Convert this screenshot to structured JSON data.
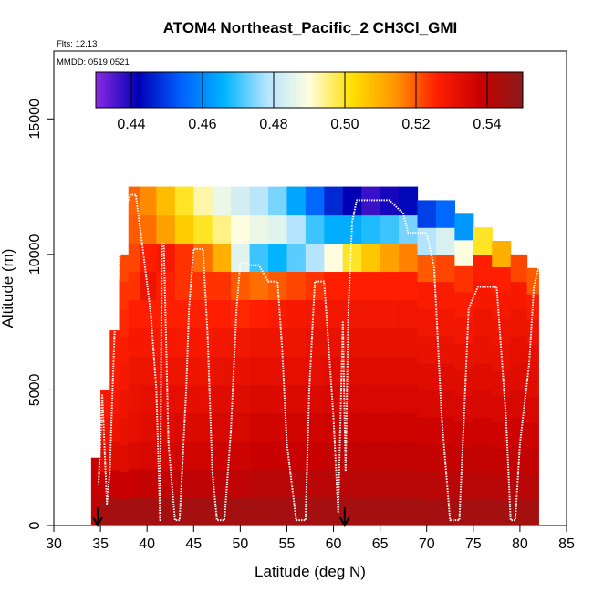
{
  "chart_data": {
    "type": "heatmap",
    "title": "ATOM4 Northeast_Pacific_2 CH3Cl_GMI",
    "flights_label": "Flts: 12,13",
    "date_label": "MMDD: 0519,0521",
    "xlabel": "Latitude (deg N)",
    "ylabel": "Altitude (m)",
    "xlim": [
      30,
      85
    ],
    "ylim": [
      0,
      17500
    ],
    "x_ticks": [
      "30",
      "35",
      "40",
      "45",
      "50",
      "55",
      "60",
      "65",
      "70",
      "75",
      "80",
      "85"
    ],
    "y_ticks": [
      "0",
      "5000",
      "10000",
      "15000"
    ],
    "colorbar": {
      "range": [
        0.43,
        0.55
      ],
      "ticks": [
        "0.44",
        "0.46",
        "0.48",
        "0.50",
        "0.52",
        "0.54"
      ],
      "stops": [
        "#8a2be2",
        "#0000b4",
        "#0060ff",
        "#00b4ff",
        "#b4e4ff",
        "#fffde0",
        "#ffe000",
        "#ff9600",
        "#ff1e00",
        "#c80000",
        "#8b1a1a"
      ]
    },
    "field_columns": [
      {
        "lat": 34.5,
        "top": 2500,
        "values": [
          0.54,
          0.538
        ]
      },
      {
        "lat": 35.5,
        "top": 5000,
        "values": [
          0.545,
          0.538,
          0.532,
          0.53,
          0.528
        ]
      },
      {
        "lat": 36.5,
        "top": 7200,
        "values": [
          0.545,
          0.538,
          0.533,
          0.53,
          0.528,
          0.527,
          0.526
        ]
      },
      {
        "lat": 37.5,
        "top": 10000,
        "values": [
          0.545,
          0.538,
          0.533,
          0.531,
          0.53,
          0.528,
          0.527,
          0.525,
          0.524,
          0.522
        ]
      },
      {
        "lat": 38.5,
        "top": 12500,
        "values": [
          0.545,
          0.538,
          0.534,
          0.532,
          0.531,
          0.53,
          0.528,
          0.526,
          0.524,
          0.522,
          0.52,
          0.519
        ]
      },
      {
        "lat": 40.0,
        "top": 12500,
        "values": [
          0.545,
          0.539,
          0.535,
          0.533,
          0.532,
          0.53,
          0.528,
          0.526,
          0.53,
          0.526,
          0.518,
          0.515
        ]
      },
      {
        "lat": 42.0,
        "top": 12500,
        "values": [
          0.545,
          0.539,
          0.535,
          0.533,
          0.532,
          0.53,
          0.528,
          0.526,
          0.526,
          0.528,
          0.512,
          0.508
        ]
      },
      {
        "lat": 44.0,
        "top": 12500,
        "values": [
          0.545,
          0.54,
          0.536,
          0.534,
          0.532,
          0.53,
          0.528,
          0.526,
          0.524,
          0.524,
          0.505,
          0.5
        ]
      },
      {
        "lat": 46.0,
        "top": 12500,
        "values": [
          0.545,
          0.54,
          0.536,
          0.534,
          0.532,
          0.53,
          0.528,
          0.526,
          0.524,
          0.518,
          0.5,
          0.493
        ]
      },
      {
        "lat": 48.0,
        "top": 12500,
        "values": [
          0.545,
          0.54,
          0.537,
          0.535,
          0.533,
          0.531,
          0.529,
          0.526,
          0.524,
          0.51,
          0.495,
          0.487
        ]
      },
      {
        "lat": 50.0,
        "top": 12500,
        "values": [
          0.545,
          0.54,
          0.537,
          0.535,
          0.533,
          0.531,
          0.529,
          0.525,
          0.52,
          0.485,
          0.49,
          0.483
        ]
      },
      {
        "lat": 52.0,
        "top": 12500,
        "values": [
          0.545,
          0.541,
          0.538,
          0.536,
          0.534,
          0.532,
          0.53,
          0.526,
          0.518,
          0.47,
          0.487,
          0.479
        ]
      },
      {
        "lat": 54.0,
        "top": 12500,
        "values": [
          0.545,
          0.541,
          0.538,
          0.536,
          0.534,
          0.532,
          0.53,
          0.527,
          0.52,
          0.466,
          0.485,
          0.474
        ]
      },
      {
        "lat": 56.0,
        "top": 12500,
        "values": [
          0.545,
          0.541,
          0.538,
          0.536,
          0.534,
          0.532,
          0.53,
          0.528,
          0.522,
          0.472,
          0.478,
          0.464
        ]
      },
      {
        "lat": 58.0,
        "top": 12500,
        "values": [
          0.545,
          0.541,
          0.538,
          0.536,
          0.534,
          0.532,
          0.531,
          0.529,
          0.524,
          0.478,
          0.47,
          0.455
        ]
      },
      {
        "lat": 60.0,
        "top": 12500,
        "values": [
          0.545,
          0.541,
          0.539,
          0.537,
          0.535,
          0.533,
          0.531,
          0.529,
          0.526,
          0.49,
          0.465,
          0.447
        ]
      },
      {
        "lat": 62.0,
        "top": 12500,
        "values": [
          0.545,
          0.541,
          0.539,
          0.537,
          0.535,
          0.533,
          0.531,
          0.529,
          0.526,
          0.5,
          0.465,
          0.442
        ]
      },
      {
        "lat": 64.0,
        "top": 12500,
        "values": [
          0.545,
          0.541,
          0.539,
          0.537,
          0.535,
          0.533,
          0.531,
          0.529,
          0.526,
          0.506,
          0.468,
          0.437
        ]
      },
      {
        "lat": 66.0,
        "top": 12500,
        "values": [
          0.545,
          0.541,
          0.539,
          0.537,
          0.535,
          0.533,
          0.531,
          0.529,
          0.526,
          0.512,
          0.47,
          0.44
        ]
      },
      {
        "lat": 68.0,
        "top": 12500,
        "values": [
          0.545,
          0.541,
          0.539,
          0.537,
          0.535,
          0.533,
          0.531,
          0.529,
          0.526,
          0.516,
          0.474,
          0.443
        ]
      },
      {
        "lat": 70.0,
        "top": 12000,
        "values": [
          0.545,
          0.541,
          0.539,
          0.537,
          0.535,
          0.533,
          0.531,
          0.529,
          0.527,
          0.52,
          0.478,
          0.45
        ]
      },
      {
        "lat": 72.0,
        "top": 12000,
        "values": [
          0.545,
          0.541,
          0.539,
          0.537,
          0.535,
          0.533,
          0.531,
          0.529,
          0.527,
          0.522,
          0.484,
          0.455
        ]
      },
      {
        "lat": 74.0,
        "top": 11500,
        "values": [
          0.545,
          0.541,
          0.539,
          0.537,
          0.535,
          0.533,
          0.531,
          0.529,
          0.527,
          0.524,
          0.49,
          0.462
        ]
      },
      {
        "lat": 76.0,
        "top": 11000,
        "values": [
          0.545,
          0.541,
          0.539,
          0.537,
          0.535,
          0.533,
          0.531,
          0.53,
          0.528,
          0.526,
          0.5
        ]
      },
      {
        "lat": 78.0,
        "top": 10500,
        "values": [
          0.545,
          0.541,
          0.539,
          0.537,
          0.535,
          0.533,
          0.531,
          0.53,
          0.528,
          0.526,
          0.51
        ]
      },
      {
        "lat": 80.0,
        "top": 10000,
        "values": [
          0.545,
          0.541,
          0.539,
          0.537,
          0.535,
          0.533,
          0.532,
          0.53,
          0.528,
          0.522
        ]
      },
      {
        "lat": 81.5,
        "top": 9500,
        "values": [
          0.545,
          0.541,
          0.539,
          0.537,
          0.535,
          0.533,
          0.532,
          0.53,
          0.527,
          0.52
        ]
      }
    ],
    "flight_track": {
      "lat": [
        34.8,
        35.2,
        35.7,
        36.0,
        36.5,
        37.2,
        37.8,
        38.2,
        38.8,
        39.8,
        40.4,
        41.0,
        41.4,
        41.6,
        41.8,
        42.3,
        43.0,
        43.5,
        44.2,
        44.5,
        45.0,
        45.8,
        46.0,
        46.5,
        47.0,
        47.5,
        48.3,
        49.0,
        49.6,
        50.0,
        50.6,
        51.2,
        51.5,
        52.0,
        53.0,
        54.0,
        54.5,
        55.0,
        56.0,
        57.0,
        57.4,
        58.0,
        59.0,
        60.0,
        60.5,
        61.0,
        61.3,
        61.6,
        62.0,
        62.5,
        63.2,
        64.0,
        66.0,
        67.5,
        68.0,
        69.0,
        70.0,
        70.8,
        71.6,
        72.5,
        73.5,
        74.0,
        74.5,
        75.5,
        76.0,
        77.5,
        78.5,
        79.0,
        79.5,
        80.0,
        81.0,
        81.5,
        82.0
      ],
      "alt": [
        1500,
        4800,
        800,
        2000,
        7000,
        10500,
        11800,
        12200,
        12200,
        9500,
        7800,
        5000,
        200,
        10400,
        10400,
        3000,
        200,
        200,
        5000,
        8000,
        10200,
        10200,
        10200,
        7000,
        2000,
        200,
        200,
        3500,
        8000,
        9700,
        9700,
        9600,
        9600,
        9600,
        9000,
        9000,
        6500,
        3000,
        200,
        200,
        5000,
        9000,
        9000,
        4000,
        500,
        7500,
        2000,
        8000,
        11200,
        12000,
        12000,
        12000,
        12000,
        11500,
        10800,
        10800,
        10800,
        9500,
        4000,
        200,
        200,
        4000,
        8000,
        8800,
        8800,
        8800,
        4000,
        200,
        200,
        3000,
        6000,
        8800,
        9500
      ]
    },
    "arrow_markers_lat": [
      34.7,
      61.2
    ]
  }
}
